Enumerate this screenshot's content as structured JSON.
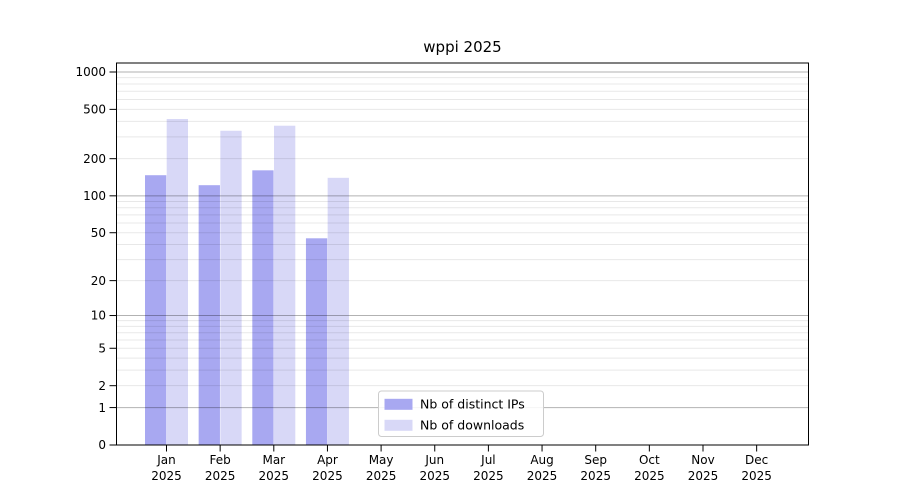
{
  "chart_data": {
    "type": "bar",
    "title": "wppi 2025",
    "categories": [
      "Jan 2025",
      "Feb 2025",
      "Mar 2025",
      "Apr 2025",
      "May 2025",
      "Jun 2025",
      "Jul 2025",
      "Aug 2025",
      "Sep 2025",
      "Oct 2025",
      "Nov 2025",
      "Dec 2025"
    ],
    "series": [
      {
        "name": "Nb of distinct IPs",
        "color": "#a8a8f1",
        "values": [
          147,
          122,
          161,
          45,
          null,
          null,
          null,
          null,
          null,
          null,
          null,
          null
        ]
      },
      {
        "name": "Nb of downloads",
        "color": "#d8d8f7",
        "values": [
          418,
          336,
          369,
          140,
          null,
          null,
          null,
          null,
          null,
          null,
          null,
          null
        ]
      }
    ],
    "xlabel": "",
    "ylabel": "",
    "yscale": "log1p",
    "y_ticks": [
      0,
      1,
      2,
      5,
      10,
      20,
      50,
      100,
      200,
      500,
      1000
    ],
    "y_major_gridlines": [
      1,
      10,
      100,
      1000
    ],
    "ylim": [
      0,
      1000
    ],
    "grid": true,
    "legend_position": "inside-bottom-center"
  },
  "colors": {
    "background": "#ffffff",
    "axis": "#000000",
    "grid_minor": "#e8e8e8",
    "grid_major": "#b3b3b3",
    "legend_border": "#cccccc",
    "legend_background": "#ffffff"
  }
}
